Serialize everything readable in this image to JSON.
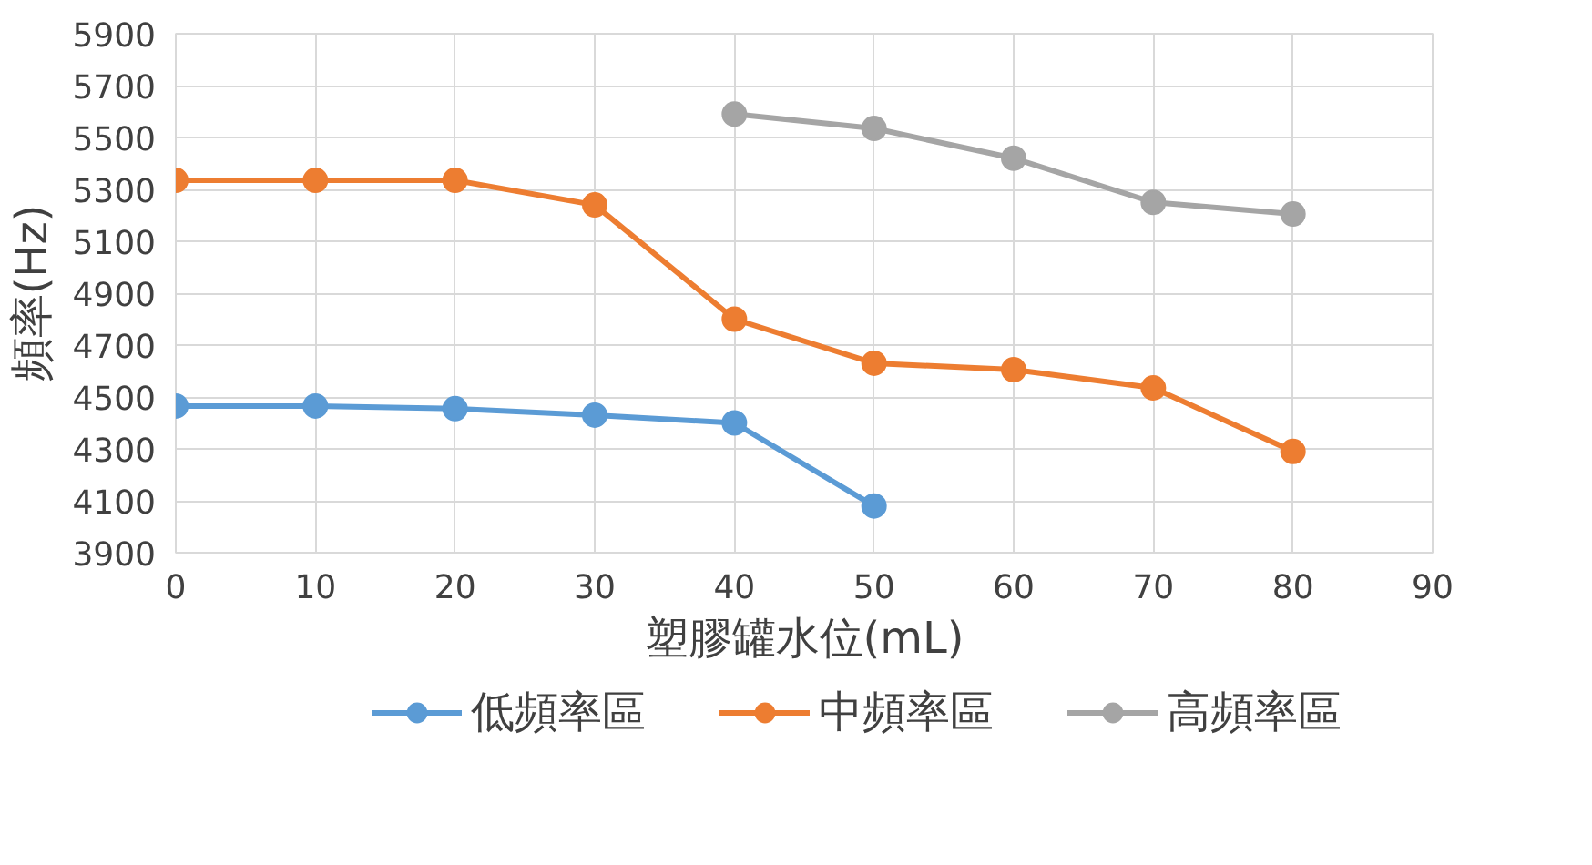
{
  "chart_data": {
    "type": "line",
    "xlabel": "塑膠罐水位(mL)",
    "ylabel": "頻率(Hz)",
    "x": [
      0,
      10,
      20,
      30,
      40,
      50,
      60,
      70,
      80
    ],
    "series": [
      {
        "name": "低頻率區",
        "color": "#5b9bd5",
        "values": [
          4465,
          4465,
          4455,
          4430,
          4400,
          4080,
          null,
          null,
          null
        ]
      },
      {
        "name": "中頻率區",
        "color": "#ed7d31",
        "values": [
          5335,
          5335,
          5335,
          5240,
          4800,
          4630,
          4605,
          4535,
          4290
        ]
      },
      {
        "name": "高頻率區",
        "color": "#a5a5a5",
        "values": [
          null,
          null,
          null,
          null,
          5590,
          5535,
          5420,
          5250,
          5205
        ]
      }
    ],
    "xlim": [
      0,
      90
    ],
    "xticks": [
      0,
      10,
      20,
      30,
      40,
      50,
      60,
      70,
      80,
      90
    ],
    "ylim": [
      3900,
      5900
    ],
    "yticks": [
      3900,
      4100,
      4300,
      4500,
      4700,
      4900,
      5100,
      5300,
      5500,
      5700,
      5900
    ],
    "grid": true,
    "legend": "bottom",
    "marker": "circle",
    "line_style": "solid"
  }
}
